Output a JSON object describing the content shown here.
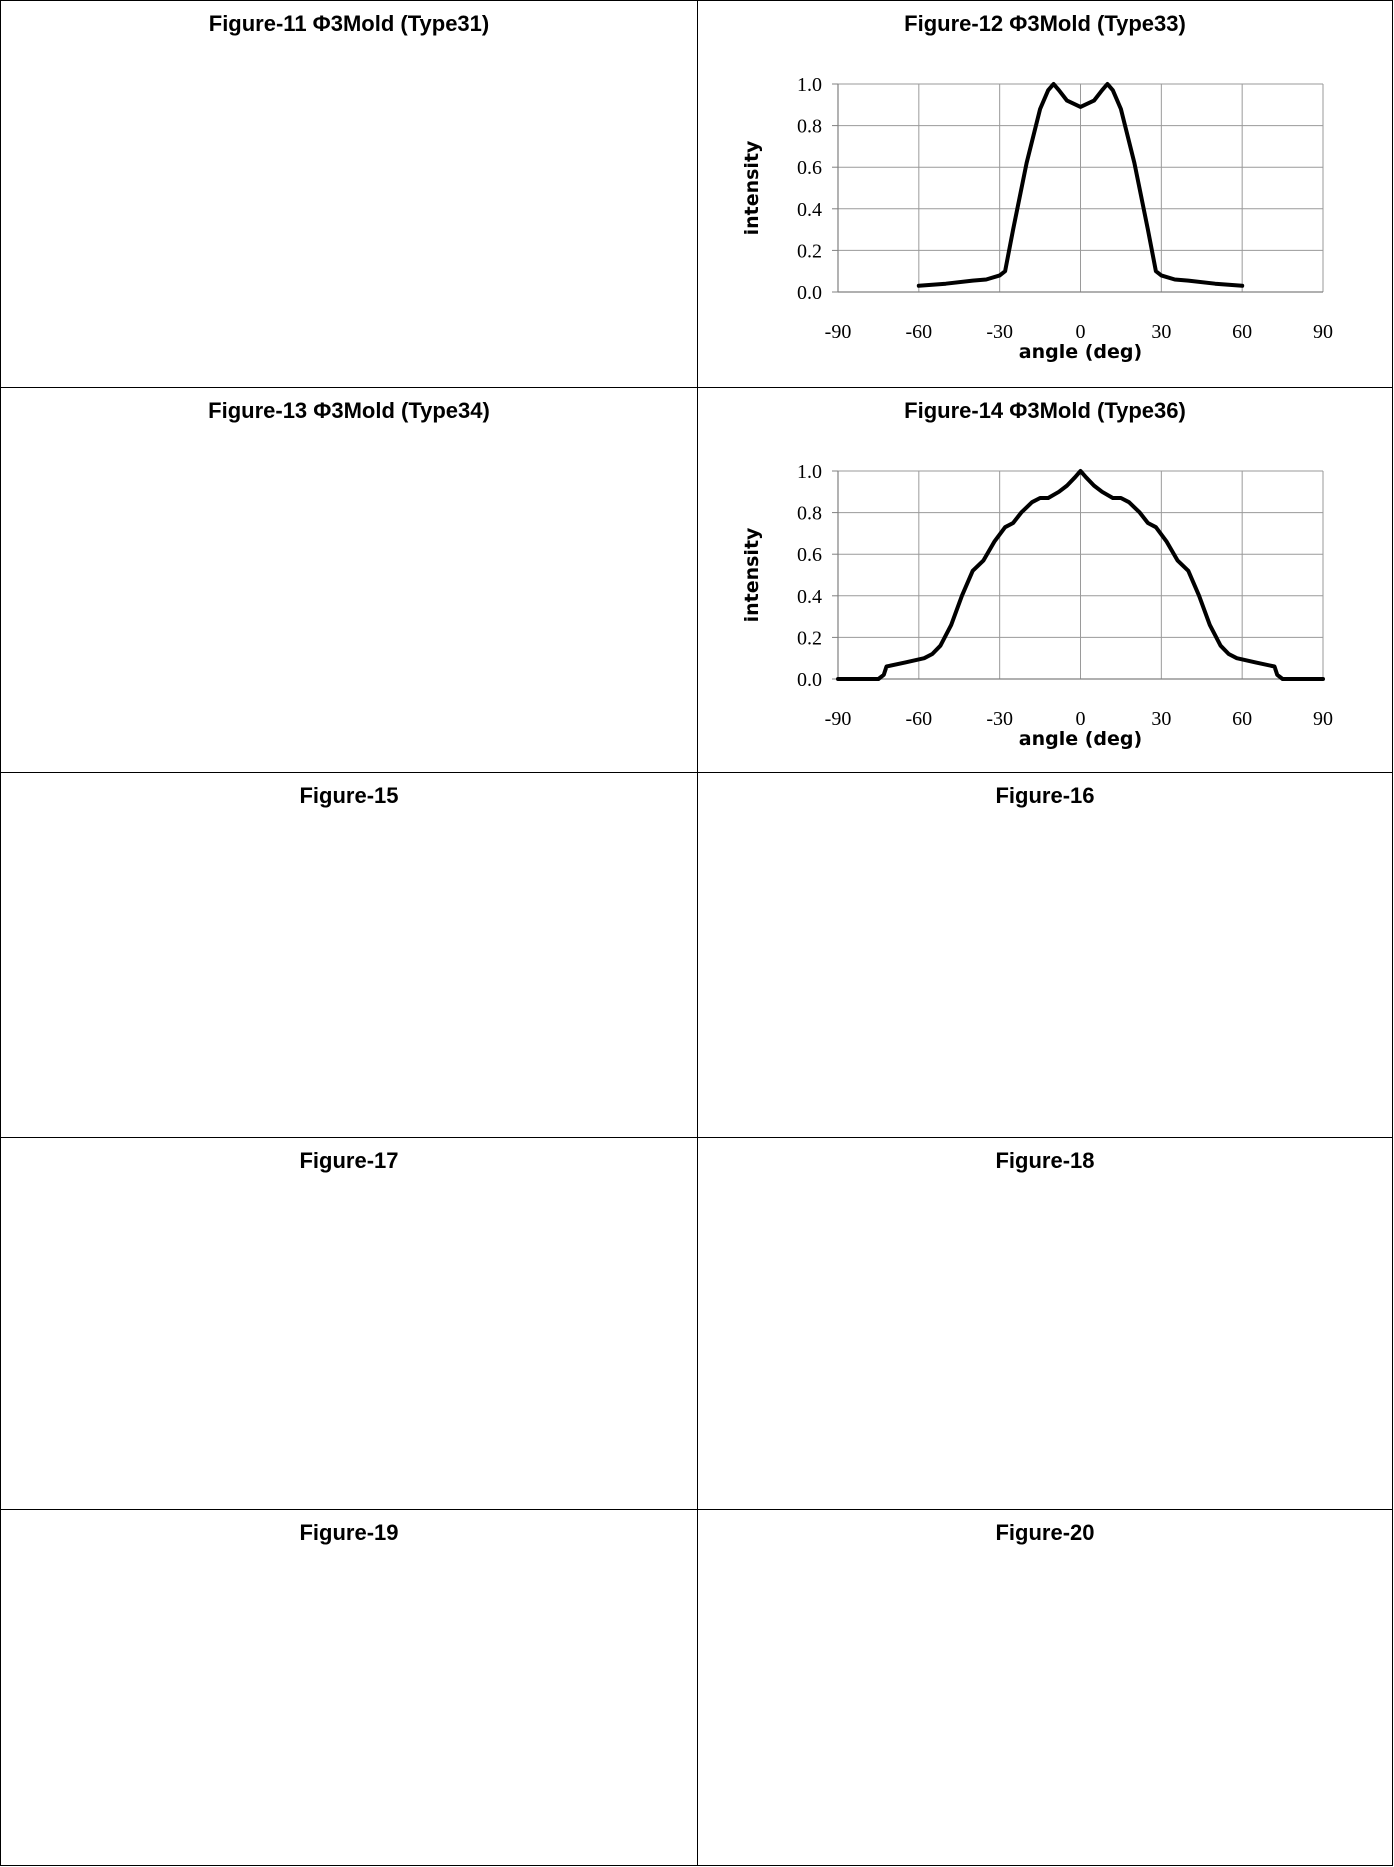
{
  "cells": [
    {
      "title": "Figure-11  Φ3Mold (Type31)"
    },
    {
      "title": "Figure-12  Φ3Mold (Type33)"
    },
    {
      "title": "Figure-13  Φ3Mold (Type34)"
    },
    {
      "title": "Figure-14  Φ3Mold (Type36)"
    },
    {
      "title": "Figure-15"
    },
    {
      "title": "Figure-16"
    },
    {
      "title": "Figure-17"
    },
    {
      "title": "Figure-18"
    },
    {
      "title": "Figure-19"
    },
    {
      "title": "Figure-20"
    }
  ],
  "chart_data": [
    {
      "type": "line",
      "title": "",
      "xlabel": "angle (deg)",
      "ylabel": "intensity",
      "xlim": [
        -90,
        90
      ],
      "ylim": [
        0,
        1
      ],
      "x_ticks": [
        "-90",
        "-60",
        "-30",
        "0",
        "30",
        "60",
        "90"
      ],
      "y_ticks": [
        "0.0",
        "0.2",
        "0.4",
        "0.6",
        "0.8",
        "1.0"
      ],
      "grid": true,
      "line_color": "#000000",
      "x": [
        -60,
        -50,
        -40,
        -35,
        -30,
        -28,
        -25,
        -20,
        -15,
        -12,
        -10,
        -8,
        -5,
        0,
        5,
        8,
        10,
        12,
        15,
        20,
        25,
        28,
        30,
        35,
        40,
        50,
        60
      ],
      "y": [
        0.03,
        0.04,
        0.055,
        0.06,
        0.08,
        0.1,
        0.3,
        0.62,
        0.88,
        0.97,
        1.0,
        0.97,
        0.92,
        0.89,
        0.92,
        0.97,
        1.0,
        0.97,
        0.88,
        0.62,
        0.3,
        0.1,
        0.08,
        0.06,
        0.055,
        0.04,
        0.03
      ]
    },
    {
      "type": "line",
      "title": "",
      "xlabel": "angle (deg)",
      "ylabel": "intensity",
      "xlim": [
        -90,
        90
      ],
      "ylim": [
        0,
        1
      ],
      "x_ticks": [
        "-90",
        "-60",
        "-30",
        "0",
        "30",
        "60",
        "90"
      ],
      "y_ticks": [
        "0.0",
        "0.2",
        "0.4",
        "0.6",
        "0.8",
        "1.0"
      ],
      "grid": true,
      "line_color": "#000000",
      "x": [
        -90,
        -75,
        -73,
        -72,
        -65,
        -58,
        -55,
        -52,
        -48,
        -44,
        -40,
        -36,
        -32,
        -28,
        -25,
        -22,
        -18,
        -15,
        -12,
        -8,
        -5,
        -2,
        0,
        2,
        5,
        8,
        12,
        15,
        18,
        22,
        25,
        28,
        32,
        36,
        40,
        44,
        48,
        52,
        55,
        58,
        65,
        72,
        73,
        75,
        90
      ],
      "y": [
        0.0,
        0.0,
        0.02,
        0.06,
        0.08,
        0.1,
        0.12,
        0.16,
        0.26,
        0.4,
        0.52,
        0.57,
        0.66,
        0.73,
        0.75,
        0.8,
        0.85,
        0.87,
        0.87,
        0.9,
        0.93,
        0.97,
        1.0,
        0.97,
        0.93,
        0.9,
        0.87,
        0.87,
        0.85,
        0.8,
        0.75,
        0.73,
        0.66,
        0.57,
        0.52,
        0.4,
        0.26,
        0.16,
        0.12,
        0.1,
        0.08,
        0.06,
        0.02,
        0.0,
        0.0
      ]
    }
  ]
}
